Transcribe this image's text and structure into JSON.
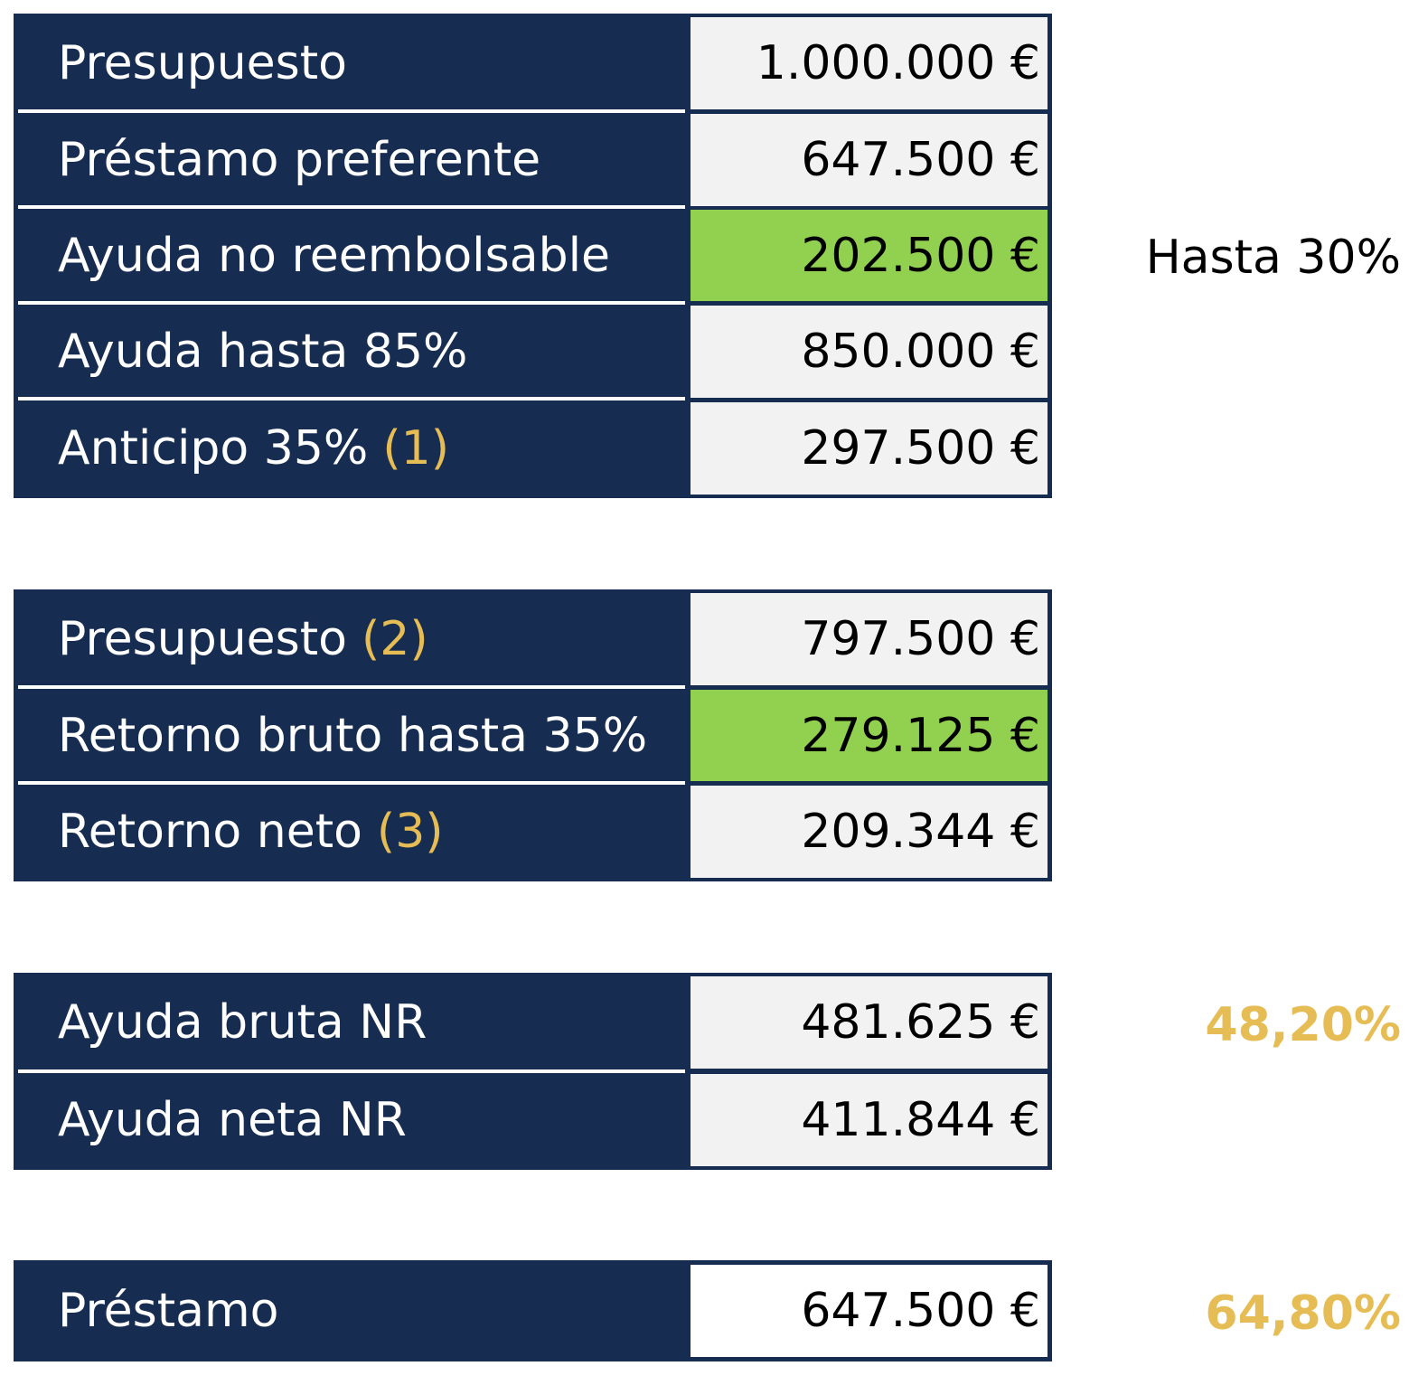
{
  "table1": {
    "rows": [
      {
        "label": "Presupuesto",
        "note": "",
        "value": "1.000.000 €"
      },
      {
        "label": "Préstamo preferente",
        "note": "",
        "value": "647.500 €"
      },
      {
        "label": "Ayuda no reembolsable",
        "note": "",
        "value": "202.500 €"
      },
      {
        "label": "Ayuda hasta 85%",
        "note": "",
        "value": "850.000 €"
      },
      {
        "label": "Anticipo 35%",
        "note": "(1)",
        "value": "297.500 €"
      }
    ],
    "side_note": "Hasta 30%"
  },
  "table2": {
    "rows": [
      {
        "label": "Presupuesto",
        "note": "(2)",
        "value": "797.500 €"
      },
      {
        "label": "Retorno bruto hasta 35%",
        "note": "",
        "value": "279.125 €"
      },
      {
        "label": "Retorno neto",
        "note": "(3)",
        "value": "209.344 €"
      }
    ]
  },
  "table3": {
    "rows": [
      {
        "label": "Ayuda bruta NR",
        "note": "",
        "value": "481.625 €"
      },
      {
        "label": "Ayuda neta NR",
        "note": "",
        "value": "411.844 €"
      }
    ],
    "side_note": "48,20%"
  },
  "table4": {
    "rows": [
      {
        "label": "Préstamo",
        "note": "",
        "value": "647.500 €"
      }
    ],
    "side_note": "64,80%"
  },
  "colors": {
    "navy": "#162c51",
    "cell_gray": "#f2f2f2",
    "highlight_green": "#92d050",
    "note_gold": "#e6bd55"
  }
}
